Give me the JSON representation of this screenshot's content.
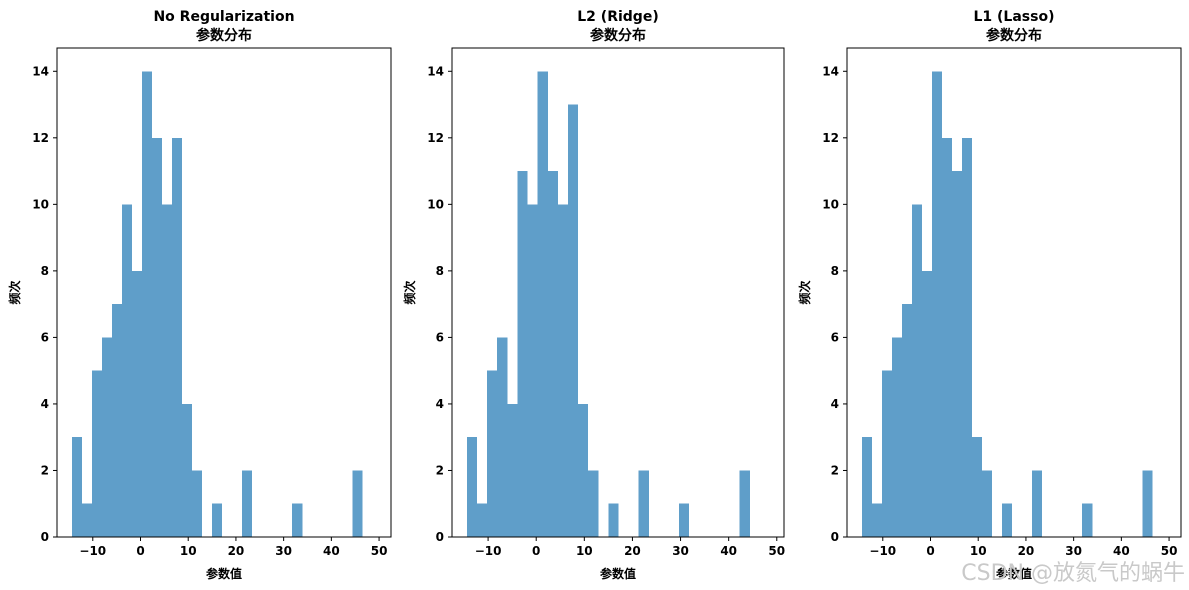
{
  "chart_data": [
    {
      "type": "bar",
      "title": "No Regularization",
      "subtitle": "参数分布",
      "xlabel": "参数值",
      "ylabel": "频次",
      "xlim": [
        -17.5,
        52.5
      ],
      "ylim": [
        0,
        14.7
      ],
      "xticks": [
        -10,
        0,
        10,
        20,
        30,
        40,
        50
      ],
      "xtick_labels": [
        "−10",
        "0",
        "10",
        "20",
        "30",
        "40",
        "50"
      ],
      "yticks": [
        0,
        2,
        4,
        6,
        8,
        10,
        12,
        14
      ],
      "bin_start": -14.4,
      "bin_width": 2.1,
      "values": [
        3,
        1,
        5,
        6,
        7,
        10,
        8,
        14,
        12,
        10,
        12,
        4,
        2,
        0,
        1,
        0,
        0,
        2,
        0,
        0,
        0,
        0,
        1,
        0,
        0,
        0,
        0,
        0,
        2
      ],
      "color": "#5f9ec9"
    },
    {
      "type": "bar",
      "title": "L2 (Ridge)",
      "subtitle": "参数分布",
      "xlabel": "参数值",
      "ylabel": "频次",
      "xlim": [
        -17.5,
        51.5
      ],
      "ylim": [
        0,
        14.7
      ],
      "xticks": [
        -10,
        0,
        10,
        20,
        30,
        40,
        50
      ],
      "xtick_labels": [
        "−10",
        "0",
        "10",
        "20",
        "30",
        "40",
        "50"
      ],
      "yticks": [
        0,
        2,
        4,
        6,
        8,
        10,
        12,
        14
      ],
      "bin_start": -14.4,
      "bin_width": 2.1,
      "values": [
        3,
        1,
        5,
        6,
        4,
        11,
        10,
        14,
        11,
        10,
        13,
        4,
        2,
        0,
        1,
        0,
        0,
        2,
        0,
        0,
        0,
        1,
        0,
        0,
        0,
        0,
        0,
        2
      ],
      "color": "#5f9ec9"
    },
    {
      "type": "bar",
      "title": "L1 (Lasso)",
      "subtitle": "参数分布",
      "xlabel": "参数值",
      "ylabel": "频次",
      "xlim": [
        -17.5,
        52.5
      ],
      "ylim": [
        0,
        14.7
      ],
      "xticks": [
        -10,
        0,
        10,
        20,
        30,
        40,
        50
      ],
      "xtick_labels": [
        "−10",
        "0",
        "10",
        "20",
        "30",
        "40",
        "50"
      ],
      "yticks": [
        0,
        2,
        4,
        6,
        8,
        10,
        12,
        14
      ],
      "bin_start": -14.4,
      "bin_width": 2.1,
      "values": [
        3,
        1,
        5,
        6,
        7,
        10,
        8,
        14,
        12,
        11,
        12,
        3,
        2,
        0,
        1,
        0,
        0,
        2,
        0,
        0,
        0,
        0,
        1,
        0,
        0,
        0,
        0,
        0,
        2
      ],
      "color": "#5f9ec9"
    }
  ],
  "watermark": "CSDN @放氮气的蜗牛"
}
